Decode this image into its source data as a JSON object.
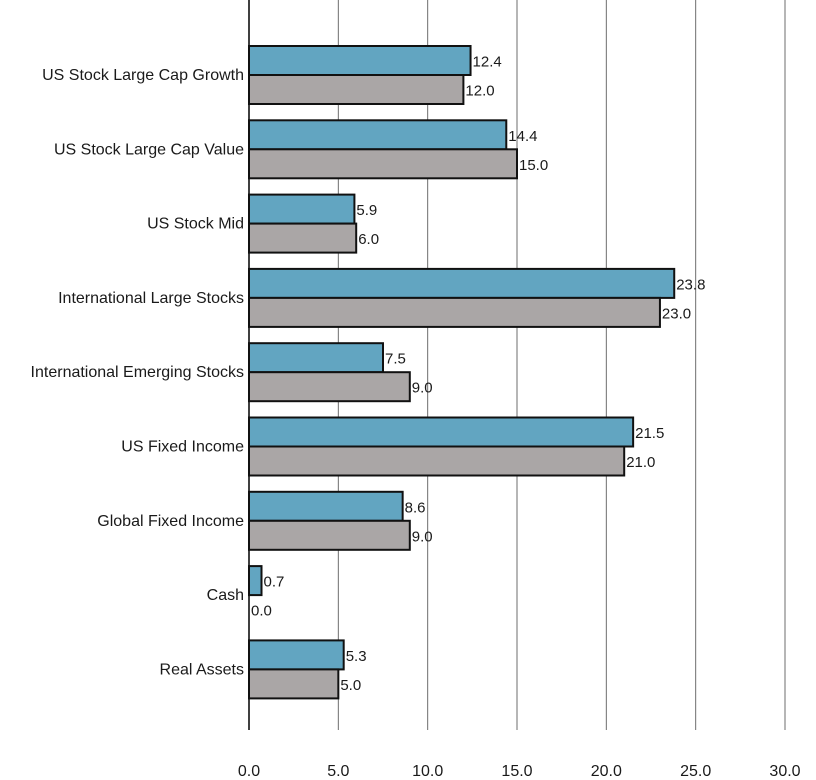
{
  "chart_data": {
    "type": "bar",
    "orientation": "horizontal",
    "categories": [
      "US Stock Large Cap Growth",
      "US Stock Large Cap Value",
      "US Stock Mid",
      "International Large Stocks",
      "International Emerging Stocks",
      "US Fixed Income",
      "Global Fixed Income",
      "Cash",
      "Real Assets"
    ],
    "series": [
      {
        "values": [
          12.4,
          14.4,
          5.9,
          23.8,
          7.5,
          21.5,
          8.6,
          0.7,
          5.3
        ],
        "color": "#62a5c1"
      },
      {
        "values": [
          12.0,
          15.0,
          6.0,
          23.0,
          9.0,
          21.0,
          9.0,
          0.0,
          5.0
        ],
        "color": "#aaa6a6"
      }
    ],
    "xlim": [
      0,
      30
    ],
    "xticks": [
      "0.0",
      "5.0",
      "10.0",
      "15.0",
      "20.0",
      "25.0",
      "30.0"
    ],
    "grid": "vertical",
    "legend": "none",
    "data_labels": true
  }
}
